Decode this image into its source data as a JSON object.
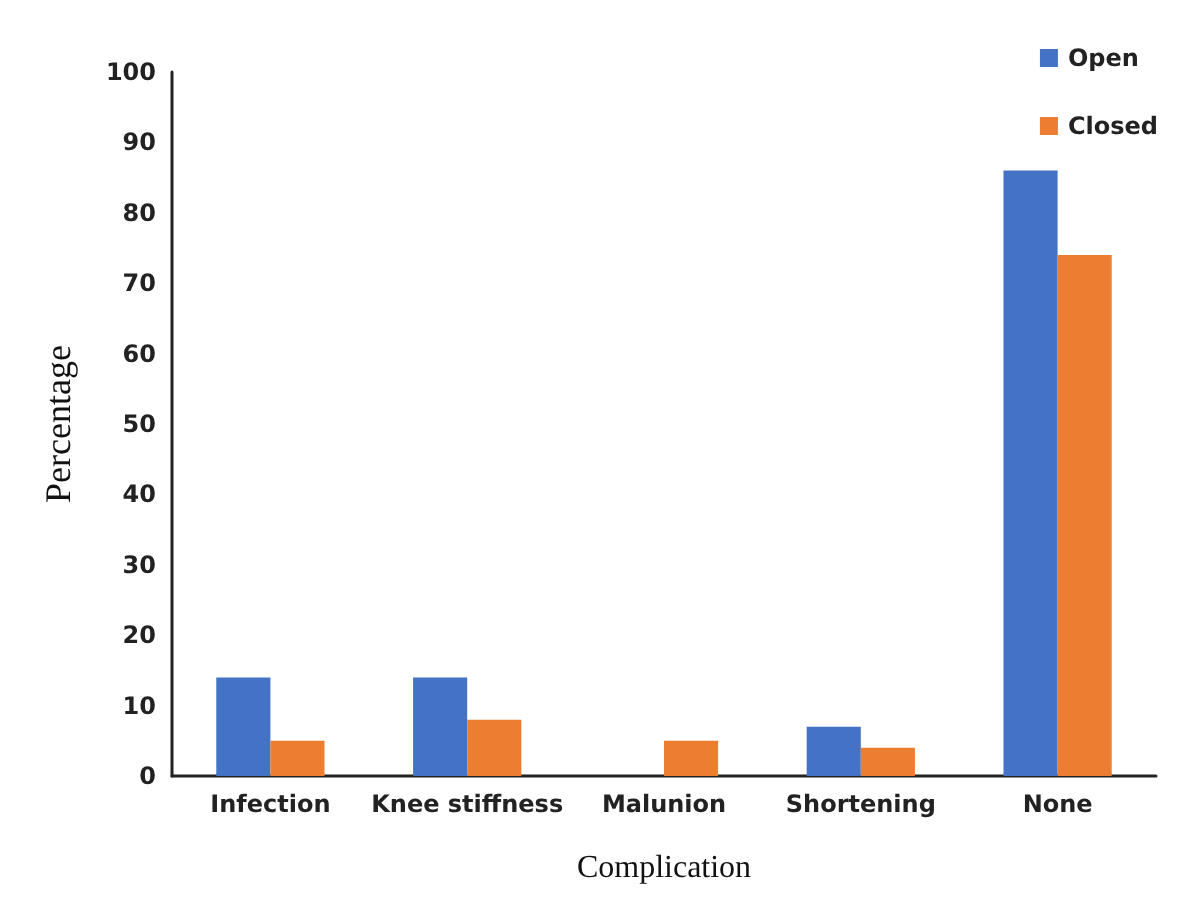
{
  "chart_data": {
    "type": "bar",
    "xlabel": "Complication",
    "ylabel": "Percentage",
    "categories": [
      "Infection",
      "Knee stiffness",
      "Malunion",
      "Shortening",
      "None"
    ],
    "series": [
      {
        "name": "Open",
        "color": "#4472c4",
        "values": [
          14,
          14,
          0,
          7,
          86
        ]
      },
      {
        "name": "Closed",
        "color": "#ed7d31",
        "values": [
          5,
          8,
          5,
          4,
          74
        ]
      }
    ],
    "ylim": [
      0,
      100
    ],
    "yticks": [
      0,
      10,
      20,
      30,
      40,
      50,
      60,
      70,
      80,
      90,
      100
    ],
    "grid": false,
    "legend": "top right"
  }
}
